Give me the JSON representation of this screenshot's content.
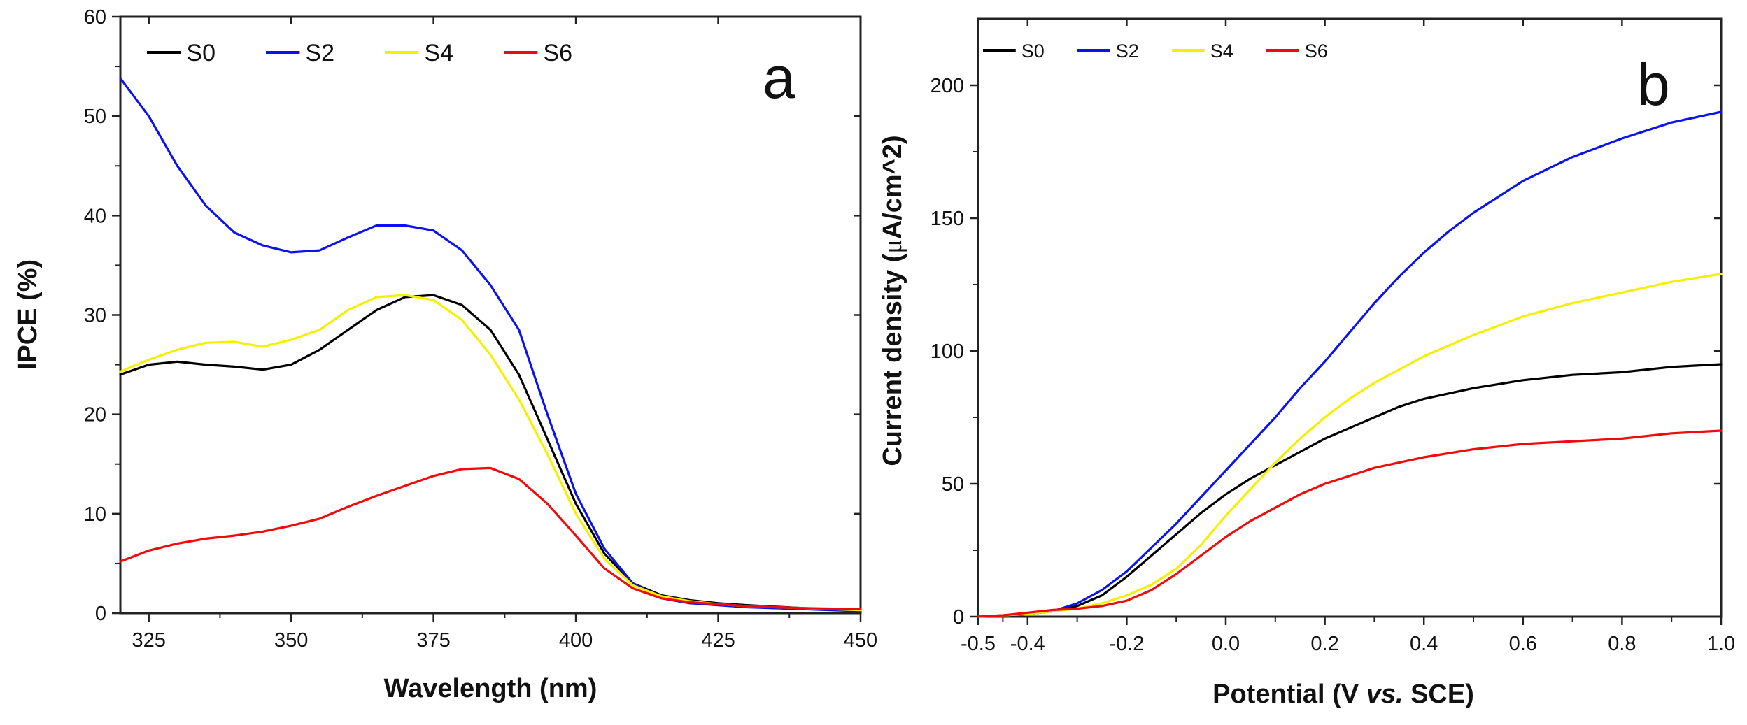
{
  "chart_data": [
    {
      "type": "line",
      "panel_label": "a",
      "xlabel": "Wavelength (nm)",
      "ylabel": "IPCE (%)",
      "xlim": [
        320,
        450
      ],
      "ylim": [
        0,
        60
      ],
      "xticks": [
        325,
        350,
        375,
        400,
        425,
        450
      ],
      "yticks": [
        0,
        10,
        20,
        30,
        40,
        50,
        60
      ],
      "legend_position": "top-left",
      "series": [
        {
          "name": "S0",
          "color": "#000000",
          "x": [
            320,
            325,
            330,
            335,
            340,
            345,
            350,
            355,
            360,
            365,
            370,
            375,
            380,
            385,
            390,
            395,
            400,
            405,
            410,
            415,
            420,
            425,
            430,
            440,
            450
          ],
          "y": [
            24.0,
            25.0,
            25.3,
            25.0,
            24.8,
            24.5,
            25.0,
            26.5,
            28.5,
            30.5,
            31.8,
            32.0,
            31.0,
            28.5,
            24.0,
            17.5,
            11.0,
            6.0,
            3.0,
            1.8,
            1.3,
            1.0,
            0.8,
            0.5,
            0.3
          ]
        },
        {
          "name": "S2",
          "color": "#0a12f0",
          "x": [
            320,
            325,
            330,
            335,
            340,
            345,
            350,
            355,
            360,
            365,
            370,
            375,
            380,
            385,
            390,
            395,
            400,
            405,
            410,
            415,
            420,
            425,
            430,
            440,
            450
          ],
          "y": [
            53.8,
            50.0,
            45.0,
            41.0,
            38.3,
            37.0,
            36.3,
            36.5,
            37.8,
            39.0,
            39.0,
            38.5,
            36.5,
            33.0,
            28.5,
            20.0,
            12.0,
            6.5,
            3.0,
            1.5,
            1.0,
            0.8,
            0.6,
            0.4,
            0.2
          ]
        },
        {
          "name": "S4",
          "color": "#f5f000",
          "x": [
            320,
            325,
            330,
            335,
            340,
            345,
            350,
            355,
            360,
            365,
            370,
            375,
            380,
            385,
            390,
            395,
            400,
            405,
            410,
            415,
            420,
            425,
            430,
            440,
            450
          ],
          "y": [
            24.3,
            25.5,
            26.5,
            27.2,
            27.3,
            26.8,
            27.5,
            28.5,
            30.5,
            31.8,
            32.0,
            31.5,
            29.5,
            26.0,
            21.5,
            16.0,
            10.0,
            5.5,
            2.8,
            1.7,
            1.2,
            0.9,
            0.7,
            0.5,
            0.3
          ]
        },
        {
          "name": "S6",
          "color": "#f00a0a",
          "x": [
            320,
            325,
            330,
            335,
            340,
            345,
            350,
            355,
            360,
            365,
            370,
            375,
            380,
            385,
            390,
            395,
            400,
            405,
            410,
            415,
            420,
            425,
            430,
            440,
            450
          ],
          "y": [
            5.2,
            6.3,
            7.0,
            7.5,
            7.8,
            8.2,
            8.8,
            9.5,
            10.7,
            11.8,
            12.8,
            13.8,
            14.5,
            14.6,
            13.5,
            11.0,
            7.8,
            4.5,
            2.5,
            1.5,
            1.1,
            0.9,
            0.7,
            0.5,
            0.4
          ]
        }
      ]
    },
    {
      "type": "line",
      "panel_label": "b",
      "xlabel_parts": [
        "Potential (V ",
        "vs.",
        " SCE)"
      ],
      "ylabel_parts": [
        "Current density (",
        "μ",
        "A/cm^2)"
      ],
      "xlim": [
        -0.5,
        1.0
      ],
      "ylim": [
        0,
        225
      ],
      "xticks": [
        "-0.5",
        "-0.4",
        "-0.2",
        "0.0",
        "0.2",
        "0.4",
        "0.6",
        "0.8",
        "1.0"
      ],
      "xtick_values": [
        -0.5,
        -0.4,
        -0.2,
        0.0,
        0.2,
        0.4,
        0.6,
        0.8,
        1.0
      ],
      "yticks": [
        0,
        50,
        100,
        150,
        200
      ],
      "legend_position": "top-left",
      "series": [
        {
          "name": "S0",
          "color": "#000000",
          "x": [
            -0.5,
            -0.45,
            -0.4,
            -0.35,
            -0.3,
            -0.25,
            -0.2,
            -0.15,
            -0.1,
            -0.05,
            0.0,
            0.05,
            0.1,
            0.15,
            0.2,
            0.25,
            0.3,
            0.35,
            0.4,
            0.5,
            0.6,
            0.7,
            0.8,
            0.9,
            1.0
          ],
          "y": [
            0,
            0.5,
            1,
            2,
            4,
            8,
            15,
            23,
            31,
            39,
            46,
            52,
            57,
            62,
            67,
            71,
            75,
            79,
            82,
            86,
            89,
            91,
            92,
            94,
            95
          ]
        },
        {
          "name": "S2",
          "color": "#0a12f0",
          "x": [
            -0.5,
            -0.45,
            -0.4,
            -0.35,
            -0.3,
            -0.25,
            -0.2,
            -0.15,
            -0.1,
            -0.05,
            0.0,
            0.05,
            0.1,
            0.15,
            0.2,
            0.25,
            0.3,
            0.35,
            0.4,
            0.45,
            0.5,
            0.6,
            0.7,
            0.8,
            0.9,
            1.0
          ],
          "y": [
            0,
            0.5,
            1,
            2,
            5,
            10,
            17,
            26,
            35,
            45,
            55,
            65,
            75,
            86,
            96,
            107,
            118,
            128,
            137,
            145,
            152,
            164,
            173,
            180,
            186,
            190
          ]
        },
        {
          "name": "S4",
          "color": "#f5f000",
          "x": [
            -0.5,
            -0.45,
            -0.4,
            -0.35,
            -0.3,
            -0.25,
            -0.2,
            -0.15,
            -0.1,
            -0.05,
            0.0,
            0.05,
            0.1,
            0.15,
            0.2,
            0.25,
            0.3,
            0.35,
            0.4,
            0.5,
            0.6,
            0.7,
            0.8,
            0.9,
            1.0
          ],
          "y": [
            0,
            0.5,
            1,
            2,
            3,
            5,
            8,
            12,
            18,
            27,
            38,
            48,
            58,
            67,
            75,
            82,
            88,
            93,
            98,
            106,
            113,
            118,
            122,
            126,
            129
          ]
        },
        {
          "name": "S6",
          "color": "#f00a0a",
          "x": [
            -0.5,
            -0.45,
            -0.4,
            -0.35,
            -0.3,
            -0.25,
            -0.2,
            -0.15,
            -0.1,
            -0.05,
            0.0,
            0.05,
            0.1,
            0.15,
            0.2,
            0.25,
            0.3,
            0.35,
            0.4,
            0.5,
            0.6,
            0.7,
            0.8,
            0.9,
            1.0
          ],
          "y": [
            0,
            0.5,
            1.5,
            2.5,
            3,
            4,
            6,
            10,
            16,
            23,
            30,
            36,
            41,
            46,
            50,
            53,
            56,
            58,
            60,
            63,
            65,
            66,
            67,
            69,
            70
          ]
        }
      ]
    }
  ]
}
